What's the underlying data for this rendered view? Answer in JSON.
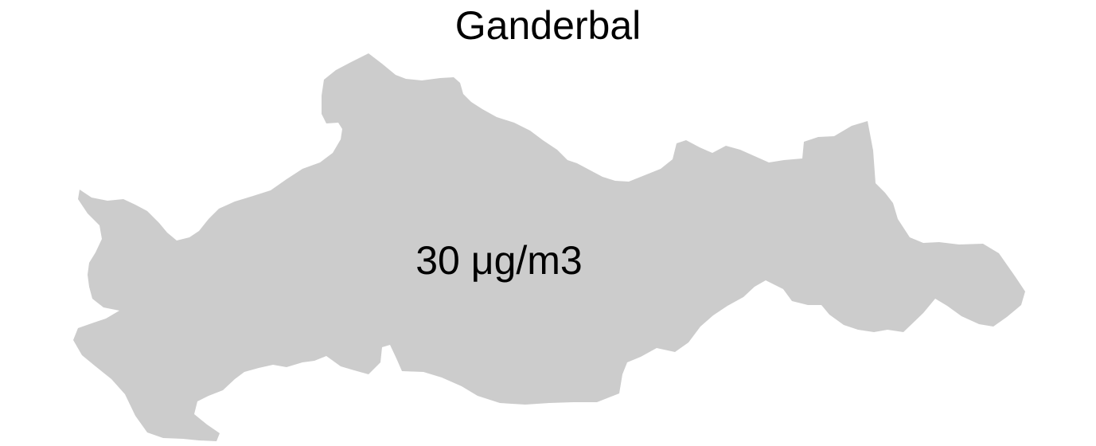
{
  "map": {
    "title": "Ganderbal",
    "region_fill": "#cccccc",
    "label_color": "#000000",
    "value_label": "30 μg/m3"
  }
}
